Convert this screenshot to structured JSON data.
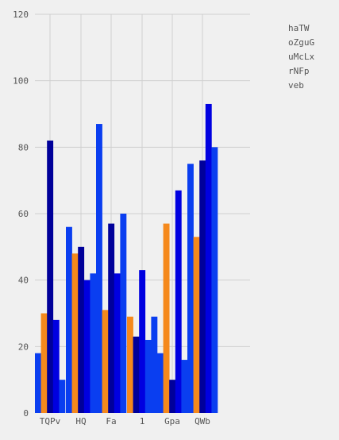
{
  "chart_data": {
    "type": "bar",
    "categories": [
      "TQPv",
      "HQ",
      "Fa",
      "1",
      "Gpa",
      "QWb"
    ],
    "series": [
      {
        "name": "haTW",
        "color": "#0a3ef0",
        "values": [
          18,
          56,
          87,
          29,
          18,
          75
        ]
      },
      {
        "name": "oZguG",
        "color": "#f5891c",
        "values": [
          30,
          48,
          31,
          29,
          57,
          53
        ]
      },
      {
        "name": "uMcLx",
        "color": "#00009a",
        "values": [
          82,
          50,
          57,
          23,
          10,
          76
        ]
      },
      {
        "name": "rNFp",
        "color": "#0000e0",
        "values": [
          28,
          40,
          42,
          43,
          67,
          93
        ]
      },
      {
        "name": "veb",
        "color": "#0a3ef0",
        "values": [
          10,
          42,
          60,
          22,
          16,
          80
        ]
      }
    ],
    "bar_order": [
      [
        "haTW",
        "oZguG",
        "uMcLx",
        "rNFp",
        "veb"
      ],
      [
        "haTW",
        "oZguG",
        "uMcLx",
        "rNFp",
        "veb"
      ],
      [
        "haTW",
        "oZguG",
        "uMcLx",
        "rNFp",
        "veb"
      ],
      [
        "oZguG",
        "uMcLx",
        "rNFp",
        "veb",
        "haTW"
      ],
      [
        "haTW",
        "oZguG",
        "uMcLx",
        "rNFp",
        "veb"
      ],
      [
        "haTW",
        "oZguG",
        "uMcLx",
        "rNFp",
        "veb"
      ]
    ],
    "y_ticks": [
      0,
      20,
      40,
      60,
      80,
      100,
      120
    ],
    "ylim": [
      0,
      120
    ],
    "title": "",
    "xlabel": "",
    "ylabel": "",
    "grid": true,
    "legend_position": "top-right",
    "background": "#f0f0f0"
  }
}
